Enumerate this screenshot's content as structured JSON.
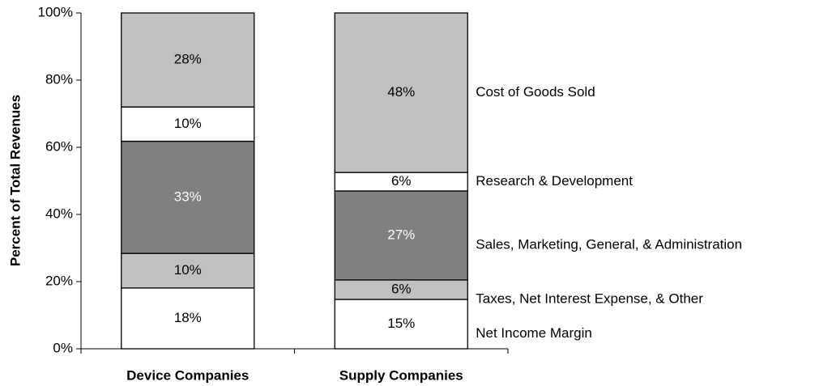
{
  "chart_data": {
    "type": "stacked-bar",
    "y_label": "Percent of Total Revenues",
    "categories": [
      "Device Companies",
      "Supply Companies"
    ],
    "series": [
      {
        "name": "Net Income Margin",
        "color": "#ffffff",
        "values": [
          18.1,
          14.7
        ],
        "value_labels": [
          "18%",
          "15%"
        ]
      },
      {
        "name": "Taxes, Net Interest Expense, & Other",
        "color": "#c0c0c0",
        "values": [
          10.3,
          5.8
        ],
        "value_labels": [
          "10%",
          "6%"
        ]
      },
      {
        "name": "Sales, Marketing, General, & Administration",
        "color": "#808080",
        "values": [
          33.4,
          26.5
        ],
        "value_labels": [
          "33%",
          "27%"
        ]
      },
      {
        "name": "Research & Development",
        "color": "#ffffff",
        "values": [
          10.2,
          5.5
        ],
        "value_labels": [
          "10%",
          "6%"
        ]
      },
      {
        "name": "Cost of Goods Sold",
        "color": "#c0c0c0",
        "values": [
          28.0,
          47.5
        ],
        "value_labels": [
          "28%",
          "48%"
        ]
      }
    ],
    "ylim": [
      0,
      100
    ],
    "yticks": [
      {
        "value": 0,
        "label": "0%"
      },
      {
        "value": 20,
        "label": "20%"
      },
      {
        "value": 40,
        "label": "40%"
      },
      {
        "value": 60,
        "label": "60%"
      },
      {
        "value": 80,
        "label": "80%"
      },
      {
        "value": 100,
        "label": "100%"
      }
    ]
  }
}
